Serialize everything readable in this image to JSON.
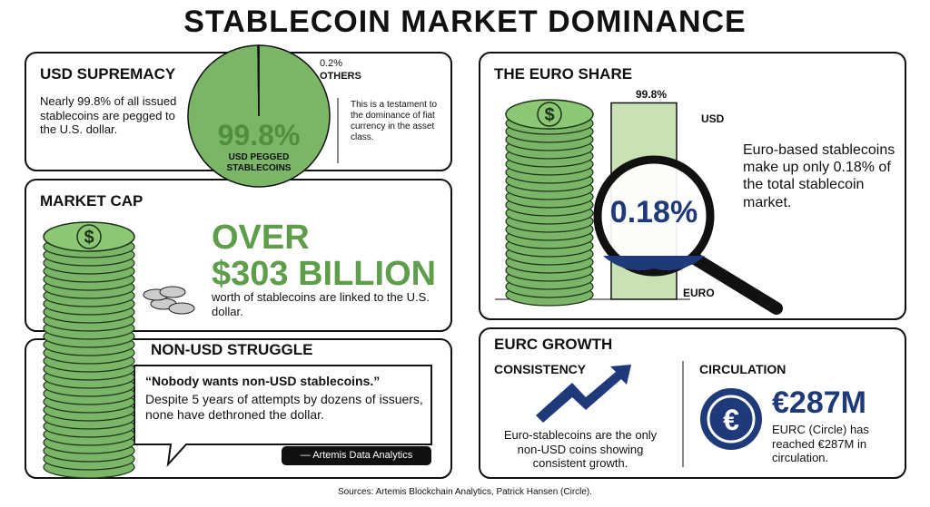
{
  "header": {
    "title": "STABLECOIN MARKET DOMINANCE"
  },
  "usd_supremacy": {
    "title": "USD SUPREMACY",
    "text": "Nearly 99.8% of all issued stablecoins are pegged to the U.S. dollar.",
    "pie": {
      "values": [
        99.8,
        0.2
      ],
      "value_labels": [
        "99.8%",
        "0.2%"
      ],
      "labels": [
        "USD PEGGED STABLECOINS",
        "OTHERS"
      ],
      "colors": [
        "#7bb567",
        "#1f3a7a"
      ]
    },
    "note": "This is a testament to the dominance of fiat currency in the asset class."
  },
  "market_cap": {
    "title": "MARKET CAP",
    "headline": [
      "OVER",
      "$303 BILLION"
    ],
    "text": "worth of stablecoins are linked to the U.S. dollar."
  },
  "non_usd": {
    "title": "NON-USD STRUGGLE",
    "quote": "“Nobody wants non-USD stablecoins.”",
    "text": "Despite 5 years of attempts by dozens of issuers, none have dethroned the dollar.",
    "attribution": "— Artemis Data Analytics"
  },
  "euro_share": {
    "title": "THE EURO SHARE",
    "values": [
      99.8,
      0.18
    ],
    "value_labels": [
      "99.8%",
      "0.18%"
    ],
    "labels": [
      "USD",
      "EURO"
    ],
    "colors": [
      "#c8e2b4",
      "#1f3a7a"
    ],
    "text": "Euro-based stablecoins make up only 0.18% of the total stablecoin market."
  },
  "eurc": {
    "title": "EURC GROWTH",
    "consistency": {
      "title": "CONSISTENCY",
      "text": "Euro-stablecoins are the only non-USD coins showing consistent growth."
    },
    "circulation": {
      "title": "CIRCULATION",
      "value": "€287M",
      "text": "EURC (Circle) has reached €287M in circulation."
    }
  },
  "footer": {
    "sources": "Sources: Artemis Blockchain Analytics, Patrick Hansen (Circle)."
  }
}
